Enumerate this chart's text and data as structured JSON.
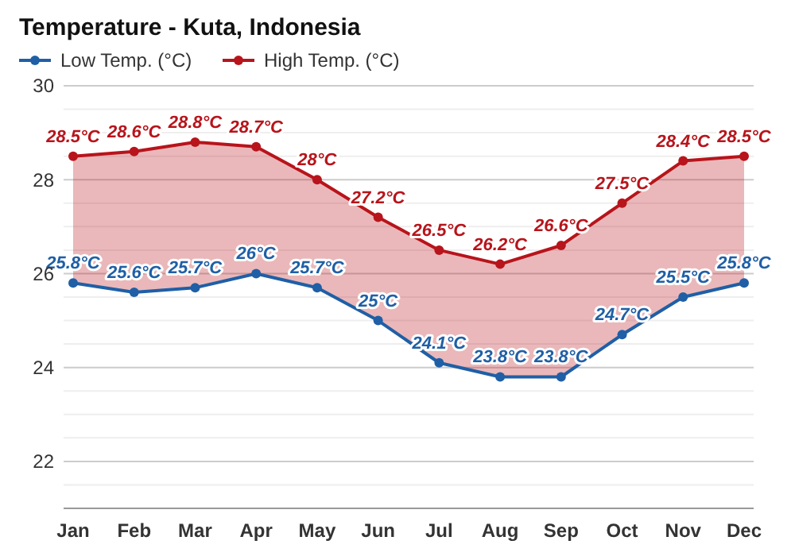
{
  "chart_data": {
    "type": "line",
    "title": "Temperature - Kuta, Indonesia",
    "categories": [
      "Jan",
      "Feb",
      "Mar",
      "Apr",
      "May",
      "Jun",
      "Jul",
      "Aug",
      "Sep",
      "Oct",
      "Nov",
      "Dec"
    ],
    "series": [
      {
        "name": "Low Temp. (°C)",
        "color": "#1f5fa6",
        "values": [
          25.8,
          25.6,
          25.7,
          26,
          25.7,
          25,
          24.1,
          23.8,
          23.8,
          24.7,
          25.5,
          25.8
        ],
        "value_labels": [
          "25.8°C",
          "25.6°C",
          "25.7°C",
          "26°C",
          "25.7°C",
          "25°C",
          "24.1°C",
          "23.8°C",
          "23.8°C",
          "24.7°C",
          "25.5°C",
          "25.8°C"
        ]
      },
      {
        "name": "High Temp. (°C)",
        "color": "#b8141b",
        "values": [
          28.5,
          28.6,
          28.8,
          28.7,
          28,
          27.2,
          26.5,
          26.2,
          26.6,
          27.5,
          28.4,
          28.5
        ],
        "lower": [
          25.8,
          25.6,
          25.7,
          26,
          25.7,
          25,
          24.1,
          23.8,
          23.8,
          24.7,
          25.5,
          25.8
        ],
        "upper": [
          28.5,
          28.6,
          28.8,
          28.7,
          28,
          27.2,
          26.5,
          26.2,
          26.6,
          27.5,
          28.4,
          28.5
        ],
        "value_labels": [
          "28.5°C",
          "28.6°C",
          "28.8°C",
          "28.7°C",
          "28°C",
          "27.2°C",
          "26.5°C",
          "26.2°C",
          "26.6°C",
          "27.5°C",
          "28.4°C",
          "28.5°C"
        ]
      }
    ],
    "ylim": [
      21,
      30
    ],
    "yticks": [
      22,
      24,
      26,
      28,
      30
    ],
    "grid": "y",
    "legend": "top left",
    "marker": "circle",
    "line_style": "solid"
  }
}
